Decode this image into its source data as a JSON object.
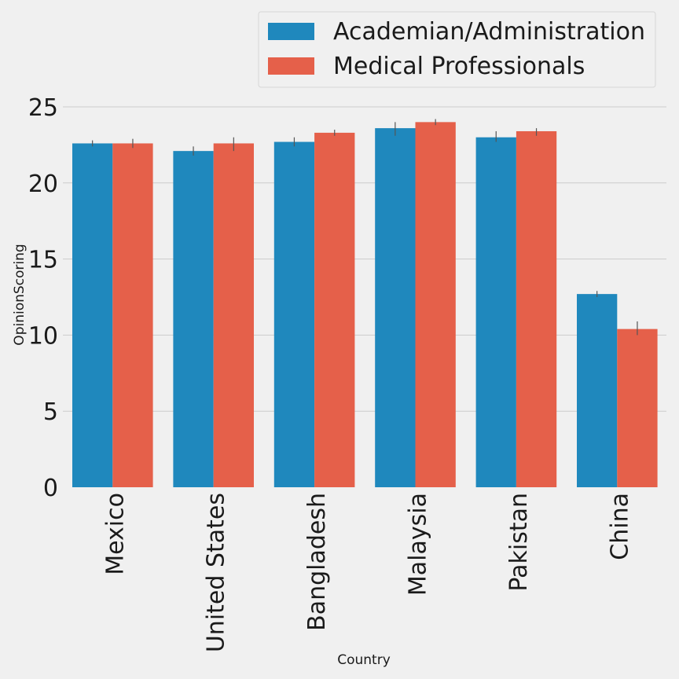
{
  "chart_data": {
    "type": "bar",
    "title": "",
    "xlabel": "Country",
    "ylabel": "OpinionScoring",
    "categories": [
      "Mexico",
      "United States",
      "Bangladesh",
      "Malaysia",
      "Pakistan",
      "China"
    ],
    "series": [
      {
        "name": "Academian/Administration",
        "color": "#1f88bd",
        "values": [
          22.6,
          22.1,
          22.7,
          23.6,
          23.0,
          12.7
        ],
        "error": [
          [
            22.4,
            22.8
          ],
          [
            21.8,
            22.4
          ],
          [
            22.4,
            23.0
          ],
          [
            23.1,
            24.0
          ],
          [
            22.7,
            23.4
          ],
          [
            12.5,
            12.9
          ]
        ]
      },
      {
        "name": "Medical Professionals",
        "color": "#e5604a",
        "values": [
          22.6,
          22.6,
          23.3,
          24.0,
          23.4,
          10.4
        ],
        "error": [
          [
            22.3,
            22.9
          ],
          [
            22.1,
            23.0
          ],
          [
            23.1,
            23.5
          ],
          [
            23.8,
            24.2
          ],
          [
            23.1,
            23.6
          ],
          [
            10.0,
            10.9
          ]
        ]
      }
    ],
    "ylim": [
      0,
      25
    ],
    "yticks": [
      0,
      5,
      10,
      15,
      20,
      25
    ],
    "grid": "horizontal",
    "legend_position": "top-right",
    "background": "#f0f0f0",
    "grid_color": "#cbcbcb",
    "errorbar_color": "#555555"
  }
}
